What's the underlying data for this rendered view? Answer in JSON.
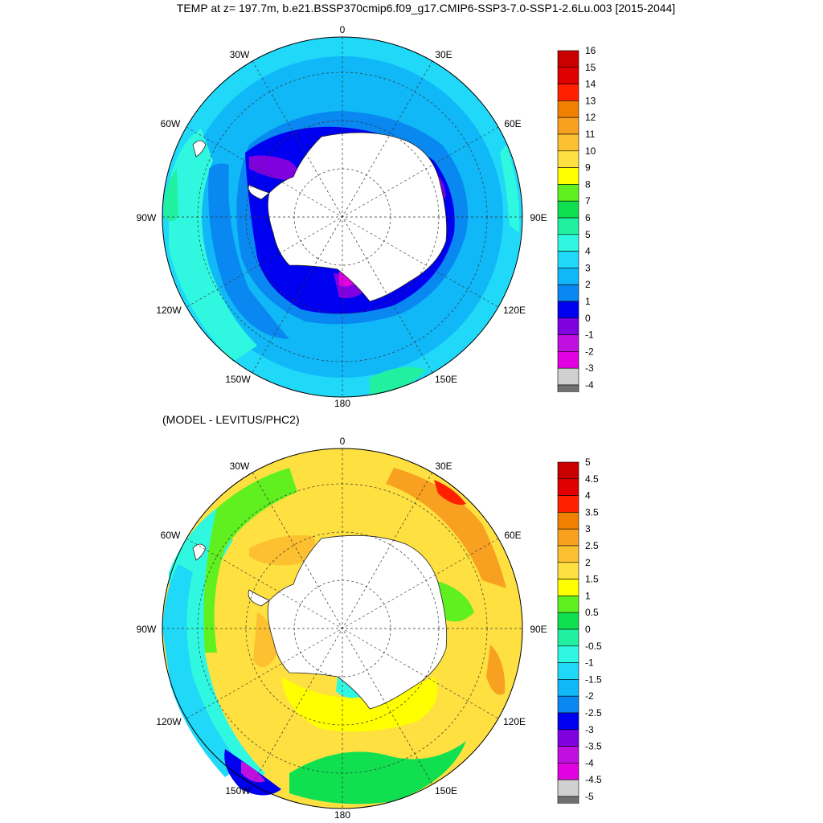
{
  "title": "TEMP at z= 197.7m, b.e21.BSSP370cmip6.f09_g17.CMIP6-SSP3-7.0-SSP1-2.6Lu.003 [2015-2044]",
  "subtitle": "(MODEL - LEVITUS/PHC2)",
  "longitude_labels": {
    "top": "0",
    "nne": "30E",
    "ene": "60E",
    "east": "90E",
    "ese": "120E",
    "sse": "150E",
    "bottom": "180",
    "ssw": "150W",
    "wsw": "120W",
    "west": "90W",
    "wnw": "60W",
    "nnw": "30W"
  },
  "maps": [
    {
      "id": "model-temperature",
      "colorbar_labels": [
        "16",
        "15",
        "14",
        "13",
        "12",
        "11",
        "10",
        "9",
        "8",
        "7",
        "6",
        "5",
        "4",
        "3",
        "2",
        "1",
        "0",
        "-1",
        "-2",
        "-3",
        "-4"
      ],
      "colorbar_colors": [
        "#c80000",
        "#e00000",
        "#ff2000",
        "#f08000",
        "#f8a020",
        "#fcc030",
        "#fee040",
        "#ffff00",
        "#60f020",
        "#10e050",
        "#20f0a0",
        "#30f8e0",
        "#20d8f8",
        "#10b8f8",
        "#0888f0",
        "#0000f0",
        "#8000e0",
        "#c010e0",
        "#e000e0",
        "#d0d0d0",
        "#707070"
      ],
      "ocean_color": "#10b8f8"
    },
    {
      "id": "model-minus-observations",
      "colorbar_labels": [
        "5",
        "4.5",
        "4",
        "3.5",
        "3",
        "2.5",
        "2",
        "1.5",
        "1",
        "0.5",
        "0",
        "-0.5",
        "-1",
        "-1.5",
        "-2",
        "-2.5",
        "-3",
        "-3.5",
        "-4",
        "-4.5",
        "-5"
      ],
      "colorbar_colors": [
        "#c80000",
        "#e00000",
        "#ff2000",
        "#f08000",
        "#f8a020",
        "#fcc030",
        "#fee040",
        "#ffff00",
        "#60f020",
        "#10e050",
        "#20f0a0",
        "#30f8e0",
        "#20d8f8",
        "#10b8f8",
        "#0888f0",
        "#0000f0",
        "#8000e0",
        "#c010e0",
        "#e000e0",
        "#d0d0d0",
        "#707070"
      ],
      "ocean_color": "#fee040"
    }
  ]
}
